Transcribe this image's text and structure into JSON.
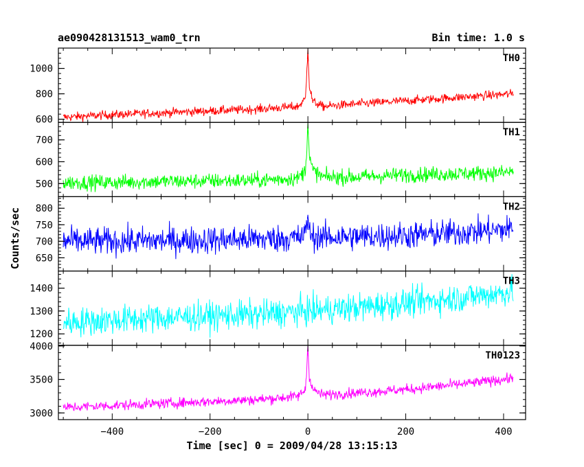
{
  "header": {
    "file_title": "ae090428131513_wam0_trn",
    "bin_time": "Bin time: 1.0 s"
  },
  "chart_data": {
    "type": "line",
    "xlabel": "Time [sec] 0 = 2009/04/28 13:15:13",
    "ylabel": "Counts/sec",
    "xlim": [
      -510,
      445
    ],
    "xticks": [
      -400,
      -200,
      0,
      200,
      400
    ],
    "panels": [
      {
        "name": "TH0",
        "color": "#ff0000",
        "ylim": [
          575,
          1160
        ],
        "yticks": [
          600,
          800,
          1000
        ],
        "series": {
          "x": [
            -500,
            -400,
            -300,
            -200,
            -100,
            -20,
            -5,
            0,
            3,
            10,
            30,
            100,
            200,
            300,
            400,
            420
          ],
          "y": [
            615,
            635,
            650,
            665,
            680,
            700,
            760,
            1150,
            860,
            740,
            700,
            720,
            745,
            770,
            795,
            800
          ]
        },
        "noise": 25
      },
      {
        "name": "TH1",
        "color": "#00ff00",
        "ylim": [
          440,
          780
        ],
        "yticks": [
          500,
          600,
          700
        ],
        "series": {
          "x": [
            -500,
            -400,
            -300,
            -200,
            -100,
            -20,
            -5,
            0,
            3,
            10,
            30,
            100,
            200,
            300,
            400,
            420
          ],
          "y": [
            505,
            505,
            510,
            512,
            515,
            525,
            560,
            775,
            620,
            560,
            530,
            530,
            540,
            545,
            550,
            555
          ]
        },
        "noise": 25
      },
      {
        "name": "TH2",
        "color": "#0000ff",
        "ylim": [
          610,
          835
        ],
        "yticks": [
          650,
          700,
          750,
          800
        ],
        "series": {
          "x": [
            -500,
            -400,
            -300,
            -200,
            -100,
            -20,
            -5,
            0,
            3,
            10,
            30,
            100,
            200,
            300,
            400,
            420
          ],
          "y": [
            700,
            700,
            702,
            704,
            707,
            710,
            720,
            780,
            725,
            715,
            712,
            714,
            718,
            725,
            735,
            740
          ]
        },
        "noise": 30
      },
      {
        "name": "TH3",
        "color": "#00ffff",
        "ylim": [
          1150,
          1475
        ],
        "yticks": [
          1200,
          1300,
          1400
        ],
        "series": {
          "x": [
            -500,
            -400,
            -300,
            -200,
            -100,
            0,
            100,
            200,
            300,
            400,
            420
          ],
          "y": [
            1250,
            1260,
            1270,
            1278,
            1285,
            1300,
            1315,
            1335,
            1355,
            1380,
            1390
          ]
        },
        "noise": 45
      },
      {
        "name": "TH0123",
        "color": "#ff00ff",
        "ylim": [
          2900,
          4010
        ],
        "yticks": [
          3000,
          3500,
          4000
        ],
        "series": {
          "x": [
            -500,
            -400,
            -300,
            -200,
            -100,
            -20,
            -5,
            0,
            3,
            10,
            30,
            100,
            200,
            300,
            400,
            420
          ],
          "y": [
            3080,
            3110,
            3140,
            3170,
            3200,
            3250,
            3350,
            3980,
            3550,
            3350,
            3270,
            3300,
            3350,
            3420,
            3500,
            3520
          ]
        },
        "noise": 55
      }
    ]
  }
}
